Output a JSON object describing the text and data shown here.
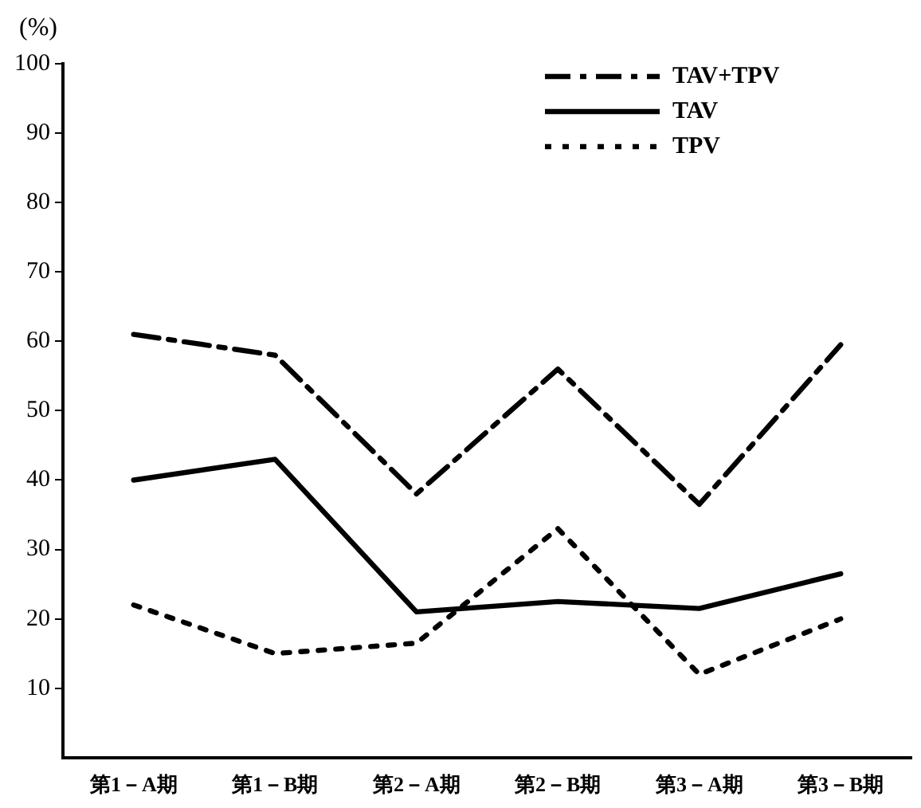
{
  "chart_data": {
    "type": "line",
    "ylabel": "(%)",
    "categories": [
      "第1－A期",
      "第1－B期",
      "第2－A期",
      "第2－B期",
      "第3－A期",
      "第3－B期"
    ],
    "series": [
      {
        "name": "TAV+TPV",
        "color": "#000000",
        "line_style": "dashdot",
        "values": [
          61,
          58,
          38,
          56,
          36.5,
          59.5
        ]
      },
      {
        "name": "TAV",
        "color": "#000000",
        "line_style": "solid",
        "values": [
          40,
          43,
          21,
          22.5,
          21.5,
          26.5
        ]
      },
      {
        "name": "TPV",
        "color": "#000000",
        "line_style": "dotted",
        "values": [
          22,
          15,
          16.5,
          33,
          12,
          20
        ]
      }
    ],
    "ylim": [
      0,
      100
    ],
    "yticks": [
      10,
      20,
      30,
      40,
      50,
      60,
      70,
      80,
      90,
      100
    ],
    "grid": false,
    "legend": "top right",
    "marker": "none"
  }
}
